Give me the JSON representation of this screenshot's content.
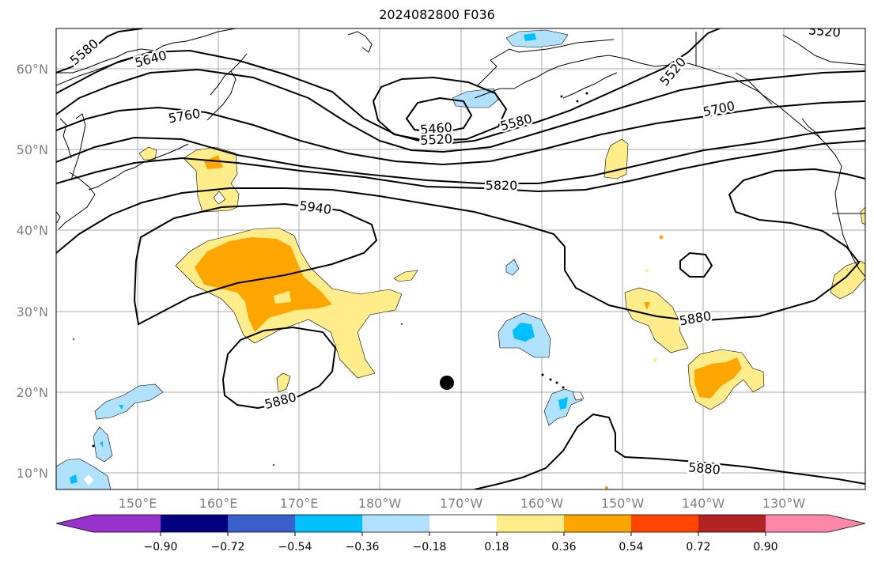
{
  "title": "2024082800 F036",
  "map": {
    "lat_labels": [
      "60°N",
      "50°N",
      "40°N",
      "30°N",
      "20°N",
      "10°N"
    ],
    "lon_labels": [
      "150°E",
      "160°E",
      "170°E",
      "180°W",
      "170°W",
      "160°W",
      "150°W",
      "140°W",
      "130°W"
    ],
    "contour_labels": [
      "5580",
      "5640",
      "5760",
      "5460",
      "5520",
      "5580",
      "5520",
      "5520",
      "5700",
      "5820",
      "5940",
      "5880",
      "5880",
      "5880"
    ]
  },
  "colorbar": {
    "colors": [
      "#9932cc",
      "#000080",
      "#3a5fcd",
      "#00bfff",
      "#b0e2ff",
      "#ffffff",
      "#ffec8b",
      "#ffa500",
      "#ff4500",
      "#b22222",
      "#ff88aa"
    ],
    "tick_labels": [
      "−0.90",
      "−0.72",
      "−0.54",
      "−0.36",
      "−0.18",
      "0.18",
      "0.36",
      "0.54",
      "0.72",
      "0.90"
    ]
  },
  "colors": {
    "grid": "#aaaaaa",
    "contour": "#000000",
    "axis_text": "#808080"
  }
}
